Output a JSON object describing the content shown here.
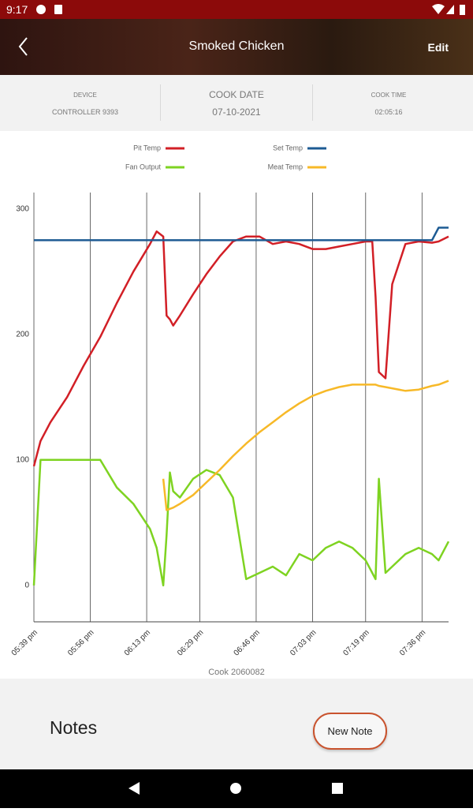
{
  "status_bar": {
    "time": "9:17"
  },
  "header": {
    "title": "Smoked Chicken",
    "edit": "Edit"
  },
  "info": {
    "device": {
      "label": "DEVICE",
      "value": "CONTROLLER 9393"
    },
    "cook_date": {
      "label": "COOK DATE",
      "value": "07-10-2021"
    },
    "cook_time": {
      "label": "COOK TIME",
      "value": "02:05:16"
    }
  },
  "chart_data": {
    "type": "line",
    "caption": "Cook 2060082",
    "x": [
      "05:39 pm",
      "05:41 pm",
      "05:44 pm",
      "05:49 pm",
      "05:54 pm",
      "05:59 pm",
      "06:04 pm",
      "06:09 pm",
      "06:14 pm",
      "06:16 pm",
      "06:18 pm",
      "06:19 pm",
      "06:20 pm",
      "06:21 pm",
      "06:23 pm",
      "06:27 pm",
      "06:31 pm",
      "06:35 pm",
      "06:39 pm",
      "06:43 pm",
      "06:47 pm",
      "06:51 pm",
      "06:55 pm",
      "06:59 pm",
      "07:03 pm",
      "07:07 pm",
      "07:11 pm",
      "07:15 pm",
      "07:19 pm",
      "07:21 pm",
      "07:22 pm",
      "07:23 pm",
      "07:25 pm",
      "07:27 pm",
      "07:31 pm",
      "07:35 pm",
      "07:39 pm",
      "07:41 pm",
      "07:44 pm"
    ],
    "series": [
      {
        "name": "Pit Temp",
        "color": "#d21f26",
        "values": [
          95,
          115,
          130,
          150,
          175,
          198,
          225,
          250,
          272,
          282,
          278,
          215,
          212,
          207,
          215,
          232,
          248,
          262,
          274,
          278,
          278,
          272,
          274,
          272,
          268,
          268,
          270,
          272,
          274,
          274,
          230,
          170,
          165,
          240,
          272,
          274,
          273,
          274,
          278
        ]
      },
      {
        "name": "Set Temp",
        "color": "#1d5b93",
        "values": [
          275,
          275,
          275,
          275,
          275,
          275,
          275,
          275,
          275,
          275,
          275,
          275,
          275,
          275,
          275,
          275,
          275,
          275,
          275,
          275,
          275,
          275,
          275,
          275,
          275,
          275,
          275,
          275,
          275,
          275,
          275,
          275,
          275,
          275,
          275,
          275,
          275,
          285,
          285
        ]
      },
      {
        "name": "Fan Output",
        "color": "#7ed321",
        "values": [
          0,
          100,
          100,
          100,
          100,
          100,
          78,
          65,
          45,
          30,
          0,
          40,
          90,
          75,
          70,
          85,
          92,
          88,
          70,
          5,
          10,
          15,
          8,
          25,
          20,
          30,
          35,
          30,
          20,
          10,
          5,
          85,
          10,
          15,
          25,
          30,
          25,
          20,
          35
        ]
      },
      {
        "name": "Meat Temp",
        "color": "#f7b928",
        "values": [
          null,
          null,
          null,
          null,
          null,
          null,
          null,
          null,
          null,
          null,
          85,
          60,
          61,
          62,
          65,
          72,
          82,
          92,
          103,
          113,
          122,
          130,
          138,
          145,
          151,
          155,
          158,
          160,
          160,
          160,
          160,
          159,
          158,
          157,
          155,
          156,
          159,
          160,
          163
        ]
      }
    ],
    "xlim": [
      "05:39 pm",
      "07:44 pm"
    ],
    "xticks": [
      "05:39 pm",
      "05:56 pm",
      "06:13 pm",
      "06:29 pm",
      "06:46 pm",
      "07:03 pm",
      "07:19 pm",
      "07:36 pm"
    ],
    "ylim": [
      -29,
      313
    ],
    "yticks": [
      0,
      100,
      200,
      300
    ],
    "grid": true
  },
  "notes": {
    "title": "Notes",
    "button": "New Note"
  }
}
